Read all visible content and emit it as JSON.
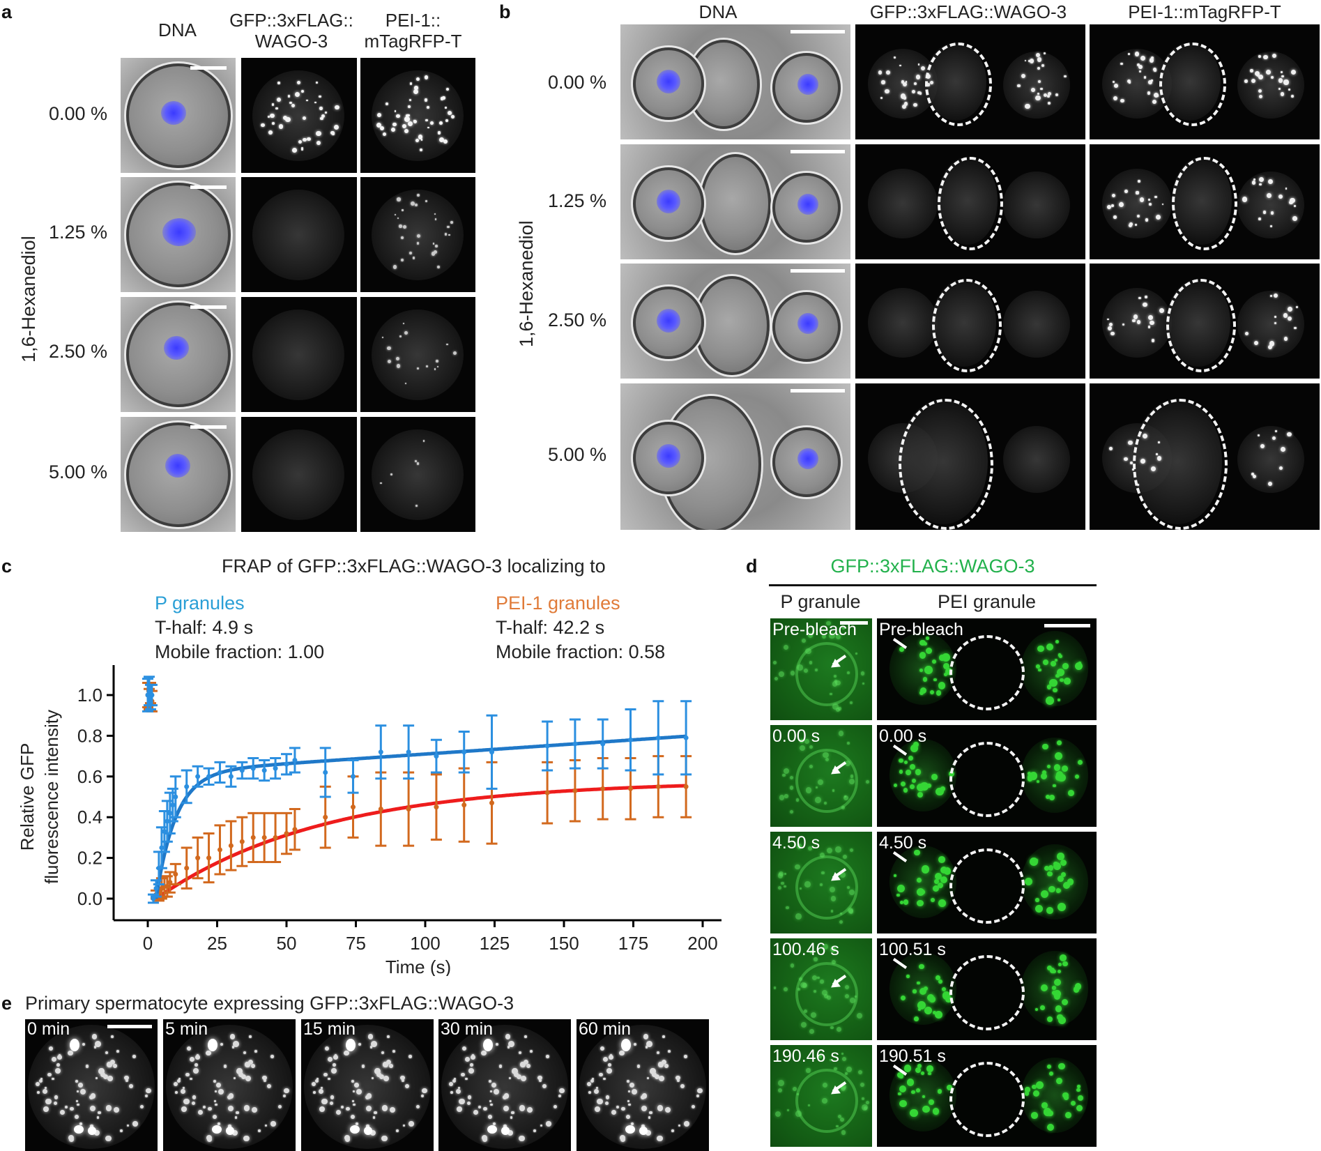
{
  "panels": {
    "a": {
      "letter": "a",
      "col_headers": [
        "DNA",
        "GFP::3xFLAG::\nWAGO-3",
        "PEI-1::\nmTagRFP-T"
      ],
      "col_header_lines": [
        [
          "DNA"
        ],
        [
          "GFP::3xFLAG::",
          "WAGO-3"
        ],
        [
          "PEI-1::",
          "mTagRFP-T"
        ]
      ],
      "rows": [
        "0.00 %",
        "1.25 %",
        "2.50 %",
        "5.00 %"
      ],
      "y_label": "1,6-Hexanediol"
    },
    "b": {
      "letter": "b",
      "col_headers": [
        "DNA",
        "GFP::3xFLAG::WAGO-3",
        "PEI-1::mTagRFP-T"
      ],
      "rows": [
        "0.00 %",
        "1.25 %",
        "2.50 %",
        "5.00 %"
      ],
      "y_label": "1,6-Hexanediol"
    },
    "c": {
      "letter": "c",
      "title": "FRAP of GFP::3xFLAG::WAGO-3 localizing to",
      "p_label": "P granules",
      "p_thalf": "T-half: 4.9 s",
      "p_mobile": "Mobile fraction: 1.00",
      "pei_label": "PEI-1 granules",
      "pei_thalf": "T-half: 42.2 s",
      "pei_mobile": "Mobile fraction: 0.58"
    },
    "d": {
      "letter": "d",
      "title": "GFP::3xFLAG::WAGO-3",
      "col_headers": [
        "P granule",
        "PEI granule"
      ],
      "left_times": [
        "Pre-bleach",
        "0.00 s",
        "4.50 s",
        "100.46 s",
        "190.46 s"
      ],
      "right_times": [
        "Pre-bleach",
        "0.00 s",
        "4.50 s",
        "100.51 s",
        "190.51 s"
      ]
    },
    "e": {
      "letter": "e",
      "title": "Primary spermatocyte expressing GFP::3xFLAG::WAGO-3",
      "times": [
        "0 min",
        "5 min",
        "15 min",
        "30 min",
        "60 min"
      ]
    }
  },
  "colors": {
    "p_granules": "#2a9fd6",
    "pei_granules": "#e07b39",
    "p_fit": "#1f78c8",
    "pei_fit": "#ee1c1c",
    "p_points": "#2b8fe0",
    "pei_points": "#d2691e",
    "gfp_green": "#22b14c"
  },
  "chart_data": {
    "type": "line",
    "title": "FRAP of GFP::3xFLAG::WAGO-3 localizing to",
    "xlabel": "Time (s)",
    "ylabel": "Relative GFP fluorescence intensity",
    "ylabel_lines": [
      "Relative GFP",
      "fluorescence intensity"
    ],
    "xlim": [
      -3,
      205
    ],
    "ylim": [
      -0.05,
      1.15
    ],
    "xticks": [
      0,
      25,
      50,
      75,
      100,
      125,
      150,
      175,
      200
    ],
    "yticks": [
      0.0,
      0.2,
      0.4,
      0.6,
      0.8,
      1.0
    ],
    "series": [
      {
        "name": "P granules",
        "x": [
          0,
          0.5,
          1,
          1.5,
          2,
          3,
          4,
          5,
          6,
          7,
          8,
          9,
          10,
          14,
          18,
          22,
          26,
          30,
          34,
          38,
          42,
          46,
          50,
          53,
          64,
          74,
          84,
          94,
          104,
          114,
          124,
          144,
          154,
          164,
          174,
          184,
          194
        ],
        "y": [
          1.0,
          1.02,
          0.99,
          1.0,
          0.0,
          0.05,
          0.15,
          0.25,
          0.33,
          0.38,
          0.42,
          0.46,
          0.5,
          0.55,
          0.6,
          0.6,
          0.62,
          0.6,
          0.63,
          0.64,
          0.63,
          0.64,
          0.66,
          0.68,
          0.62,
          0.6,
          0.72,
          0.72,
          0.7,
          0.72,
          0.72,
          0.75,
          0.76,
          0.76,
          0.78,
          0.79,
          0.79
        ],
        "err": [
          0.08,
          0.07,
          0.06,
          0.05,
          0.02,
          0.04,
          0.08,
          0.1,
          0.1,
          0.1,
          0.1,
          0.08,
          0.1,
          0.08,
          0.05,
          0.04,
          0.05,
          0.05,
          0.04,
          0.05,
          0.05,
          0.05,
          0.05,
          0.06,
          0.12,
          0.08,
          0.13,
          0.13,
          0.08,
          0.1,
          0.18,
          0.12,
          0.12,
          0.12,
          0.15,
          0.18,
          0.18
        ],
        "fit": {
          "plateau": 0.62,
          "thalf": 4.9,
          "slope": 0.00093,
          "t0": 3
        }
      },
      {
        "name": "PEI-1 granules",
        "x": [
          0,
          0.5,
          1,
          1.5,
          3,
          4,
          5,
          6,
          7,
          8,
          10,
          14,
          18,
          22,
          26,
          30,
          34,
          38,
          42,
          46,
          50,
          53,
          64,
          74,
          84,
          94,
          104,
          114,
          124,
          144,
          154,
          164,
          174,
          184,
          194
        ],
        "y": [
          1.0,
          0.98,
          1.01,
          0.97,
          0.02,
          0.03,
          0.05,
          0.06,
          0.06,
          0.08,
          0.12,
          0.15,
          0.2,
          0.2,
          0.24,
          0.26,
          0.28,
          0.3,
          0.3,
          0.3,
          0.32,
          0.34,
          0.4,
          0.45,
          0.44,
          0.44,
          0.45,
          0.46,
          0.47,
          0.52,
          0.53,
          0.54,
          0.54,
          0.55,
          0.55
        ],
        "err": [
          0.06,
          0.05,
          0.05,
          0.05,
          0.02,
          0.04,
          0.05,
          0.05,
          0.05,
          0.05,
          0.05,
          0.1,
          0.1,
          0.12,
          0.12,
          0.12,
          0.12,
          0.12,
          0.12,
          0.12,
          0.1,
          0.1,
          0.15,
          0.15,
          0.18,
          0.18,
          0.16,
          0.18,
          0.2,
          0.15,
          0.15,
          0.15,
          0.15,
          0.15,
          0.15
        ],
        "fit": {
          "plateau": 0.58,
          "thalf": 42.2,
          "t0": 3
        }
      }
    ]
  }
}
